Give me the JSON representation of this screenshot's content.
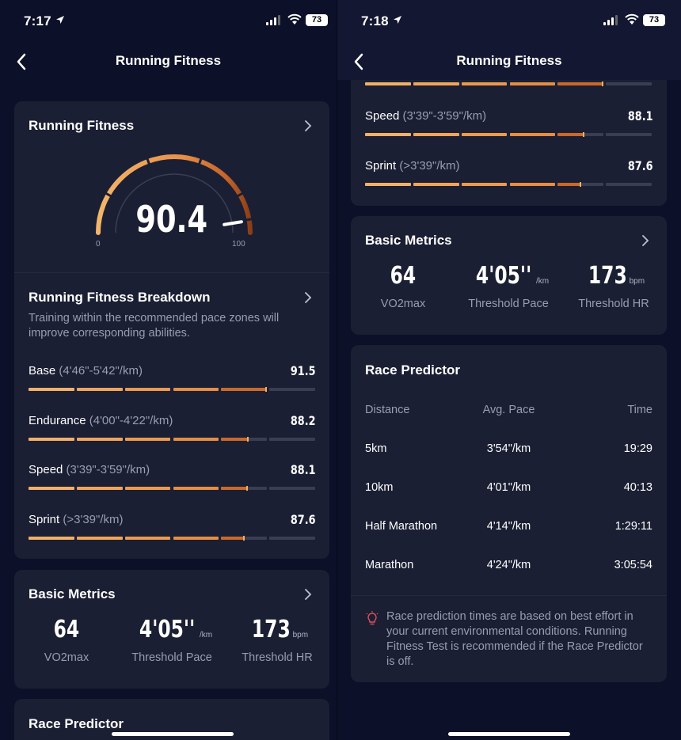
{
  "left": {
    "status": {
      "time": "7:17",
      "battery": "73"
    },
    "nav": {
      "title": "Running Fitness"
    },
    "gauge_card": {
      "title": "Running Fitness",
      "score": "90.4",
      "score_value": 90.4,
      "min_label": "0",
      "max_label": "100"
    },
    "breakdown": {
      "title": "Running Fitness Breakdown",
      "description": "Training within the recommended pace zones will improve corresponding abilities.",
      "rows": [
        {
          "name": "Base",
          "range": "(4'46\"-5'42\"/km)",
          "value": "91.5",
          "level": 91.5
        },
        {
          "name": "Endurance",
          "range": "(4'00\"-4'22\"/km)",
          "value": "88.2",
          "level": 88.2
        },
        {
          "name": "Speed",
          "range": "(3'39\"-3'59\"/km)",
          "value": "88.1",
          "level": 88.1
        },
        {
          "name": "Sprint",
          "range": "(>3'39\"/km)",
          "value": "87.6",
          "level": 87.6
        }
      ]
    },
    "basic_metrics": {
      "title": "Basic Metrics",
      "items": [
        {
          "value": "64",
          "unit": "",
          "label": "VO2max"
        },
        {
          "value": "4'05''",
          "unit": "/km",
          "label": "Threshold Pace"
        },
        {
          "value": "173",
          "unit": "bpm",
          "label": "Threshold HR"
        }
      ]
    },
    "race_predictor": {
      "title": "Race Predictor"
    }
  },
  "right": {
    "status": {
      "time": "7:18",
      "battery": "73"
    },
    "nav": {
      "title": "Running Fitness"
    },
    "rows": [
      {
        "name": "Speed",
        "range": "(3'39\"-3'59\"/km)",
        "value": "88.1",
        "level": 88.1
      },
      {
        "name": "Sprint",
        "range": "(>3'39\"/km)",
        "value": "87.6",
        "level": 87.6
      }
    ],
    "basic_metrics": {
      "title": "Basic Metrics",
      "items": [
        {
          "value": "64",
          "unit": "",
          "label": "VO2max"
        },
        {
          "value": "4'05''",
          "unit": "/km",
          "label": "Threshold Pace"
        },
        {
          "value": "173",
          "unit": "bpm",
          "label": "Threshold HR"
        }
      ]
    },
    "race_predictor": {
      "title": "Race Predictor",
      "headers": [
        "Distance",
        "Avg. Pace",
        "Time"
      ],
      "rows": [
        {
          "distance": "5km",
          "pace": "3'54\"/km",
          "time": "19:29"
        },
        {
          "distance": "10km",
          "pace": "4'01\"/km",
          "time": "40:13"
        },
        {
          "distance": "Half Marathon",
          "pace": "4'14\"/km",
          "time": "1:29:11"
        },
        {
          "distance": "Marathon",
          "pace": "4'24\"/km",
          "time": "3:05:54"
        }
      ],
      "note": "Race prediction times are based on best effort in your current environmental conditions. Running Fitness Test is recommended if the Race Predictor is off."
    }
  },
  "colors": {
    "background": "#0c1028",
    "card": "#1b1f33",
    "accent_light": "#f2b06a",
    "accent_dark": "#b0541e",
    "muted": "#9a9db0"
  }
}
